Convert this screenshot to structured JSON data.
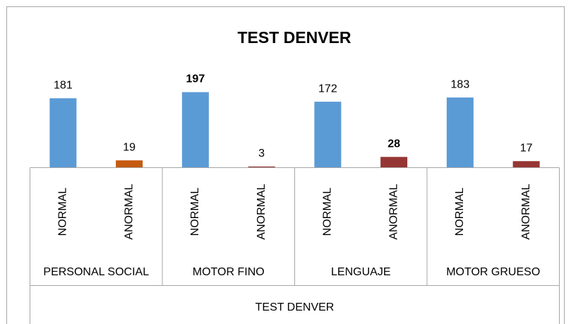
{
  "chart_data": {
    "type": "bar",
    "title": "TEST DENVER",
    "categories": [
      "NORMAL",
      "ANORMAL",
      "NORMAL",
      "ANORMAL",
      "NORMAL",
      "ANORMAL",
      "NORMAL",
      "ANORMAL"
    ],
    "groups": [
      "PERSONAL SOCIAL",
      "MOTOR FINO",
      "LENGUAJE",
      "MOTOR GRUESO"
    ],
    "axis_label": "TEST DENVER",
    "values": [
      181,
      19,
      197,
      3,
      172,
      28,
      183,
      17
    ],
    "colors": [
      "#5b9bd5",
      "#c55a11",
      "#5b9bd5",
      "#963634",
      "#5b9bd5",
      "#963634",
      "#5b9bd5",
      "#963634"
    ],
    "label_colors": [
      "#000000",
      "#000000",
      "#00b050",
      "#000000",
      "#000000",
      "#ff0000",
      "#000000",
      "#000000"
    ]
  }
}
